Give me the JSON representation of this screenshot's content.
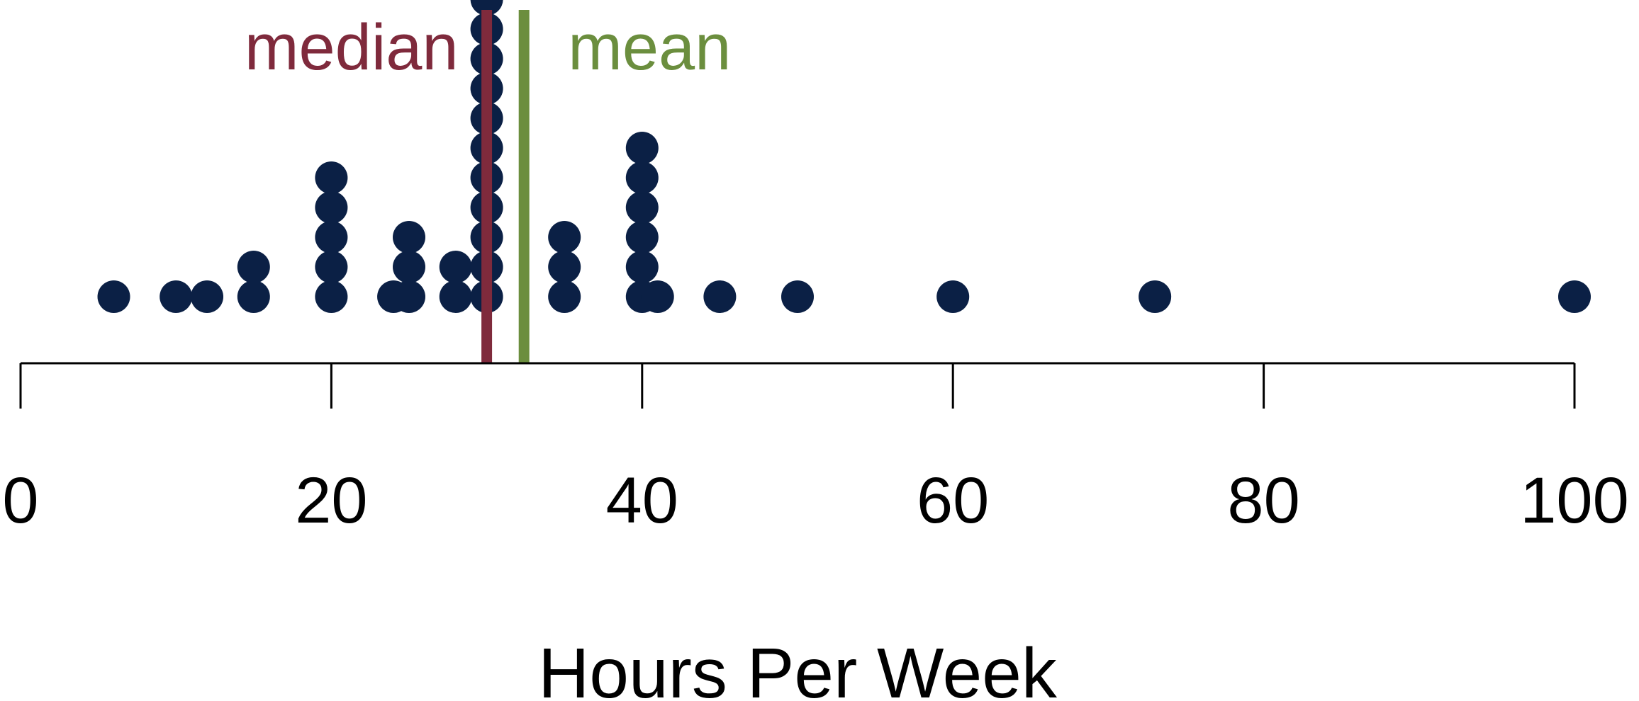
{
  "chart_data": {
    "type": "dot_plot",
    "title": "",
    "xlabel": "Hours Per Week",
    "ylabel": "",
    "xlim": [
      0,
      100
    ],
    "xticks": [
      0,
      20,
      40,
      60,
      80,
      100
    ],
    "grid": false,
    "dots": [
      {
        "x": 6,
        "count": 1
      },
      {
        "x": 10,
        "count": 1
      },
      {
        "x": 12,
        "count": 1
      },
      {
        "x": 15,
        "count": 2
      },
      {
        "x": 20,
        "count": 5
      },
      {
        "x": 24,
        "count": 1
      },
      {
        "x": 25,
        "count": 3
      },
      {
        "x": 28,
        "count": 2
      },
      {
        "x": 30,
        "count": 11
      },
      {
        "x": 35,
        "count": 3
      },
      {
        "x": 40,
        "count": 6
      },
      {
        "x": 41,
        "count": 1
      },
      {
        "x": 45,
        "count": 1
      },
      {
        "x": 50,
        "count": 1
      },
      {
        "x": 60,
        "count": 1
      },
      {
        "x": 73,
        "count": 1
      },
      {
        "x": 100,
        "count": 1
      }
    ],
    "reference_lines": [
      {
        "label": "median",
        "x": 30,
        "color": "#7f2a3c"
      },
      {
        "label": "mean",
        "x": 32.4,
        "color": "#6b8e3e"
      }
    ],
    "dot_color": "#0b2045"
  }
}
